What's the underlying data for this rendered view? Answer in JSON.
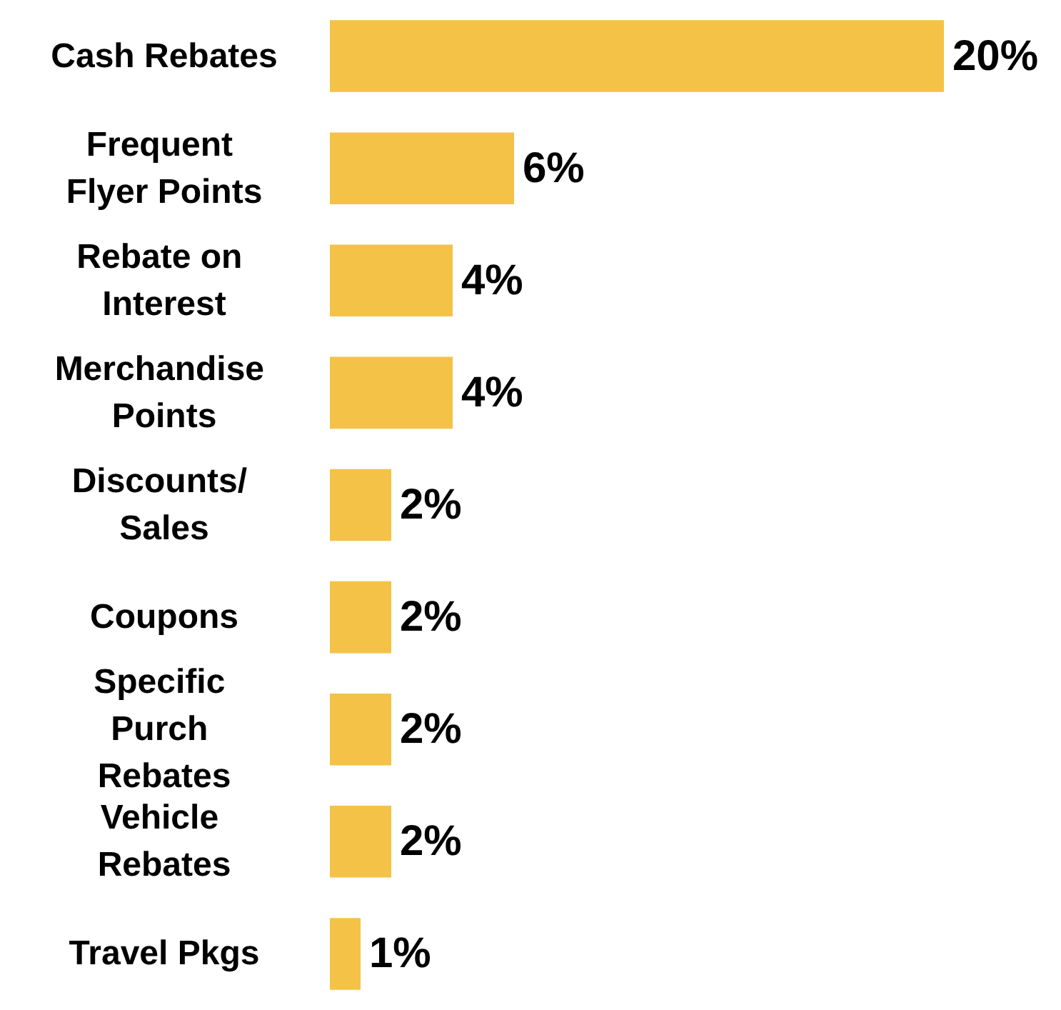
{
  "chart_data": {
    "type": "bar",
    "orientation": "horizontal",
    "categories": [
      "Cash Rebates",
      "Frequent Flyer Points",
      "Rebate on Interest",
      "Merchandise Points",
      "Discounts/ Sales",
      "Coupons",
      "Specific Purch Rebates",
      "Vehicle Rebates",
      "Travel Pkgs"
    ],
    "values": [
      20,
      6,
      4,
      4,
      2,
      2,
      2,
      2,
      1
    ],
    "value_labels": [
      "20%",
      "6%",
      "4%",
      "4%",
      "2%",
      "2%",
      "2%",
      "2%",
      "1%"
    ],
    "color": "#f4c246"
  }
}
